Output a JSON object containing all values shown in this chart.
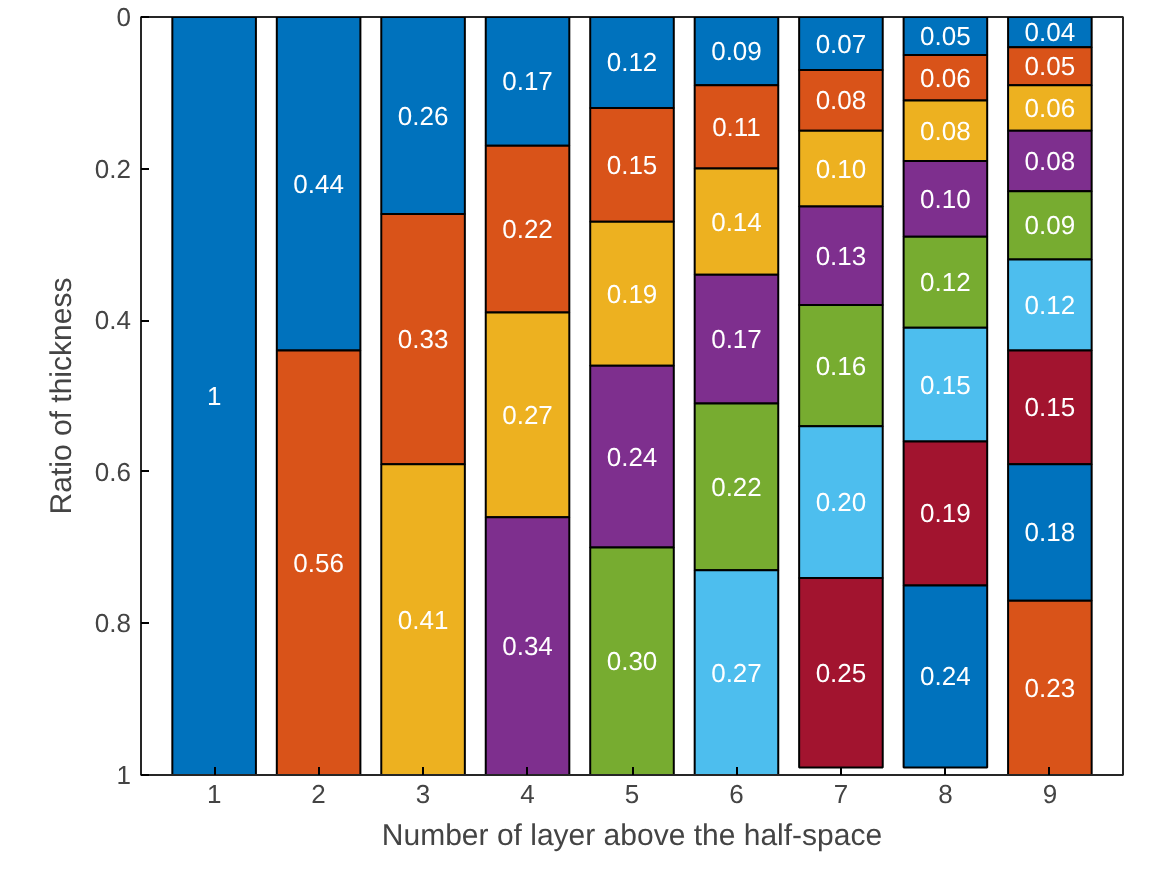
{
  "chart_data": {
    "type": "bar",
    "stacked": true,
    "xlabel": "Number of layer above the half-space",
    "ylabel": "Ratio of thickness",
    "categories": [
      "1",
      "2",
      "3",
      "4",
      "5",
      "6",
      "7",
      "8",
      "9"
    ],
    "ylim": [
      1,
      0
    ],
    "yticks": [
      0,
      0.2,
      0.4,
      0.6,
      0.8,
      1
    ],
    "grid": false,
    "series": [
      {
        "color": "#0072bd",
        "values": [
          1,
          0.44,
          0.26,
          0.17,
          0.12,
          0.09,
          0.07,
          0.05,
          0.04
        ],
        "value_labels": [
          "1",
          "0.44",
          "0.26",
          "0.17",
          "0.12",
          "0.09",
          "0.07",
          "0.05",
          "0.04"
        ]
      },
      {
        "color": "#d95319",
        "values": [
          null,
          0.56,
          0.33,
          0.22,
          0.15,
          0.11,
          0.08,
          0.06,
          0.05
        ],
        "value_labels": [
          null,
          "0.56",
          "0.33",
          "0.22",
          "0.15",
          "0.11",
          "0.08",
          "0.06",
          "0.05"
        ]
      },
      {
        "color": "#edb120",
        "values": [
          null,
          null,
          0.41,
          0.27,
          0.19,
          0.14,
          0.1,
          0.08,
          0.06
        ],
        "value_labels": [
          null,
          null,
          "0.41",
          "0.27",
          "0.19",
          "0.14",
          "0.10",
          "0.08",
          "0.06"
        ]
      },
      {
        "color": "#7e2f8e",
        "values": [
          null,
          null,
          null,
          0.34,
          0.24,
          0.17,
          0.13,
          0.1,
          0.08
        ],
        "value_labels": [
          null,
          null,
          null,
          "0.34",
          "0.24",
          "0.17",
          "0.13",
          "0.10",
          "0.08"
        ]
      },
      {
        "color": "#77ac30",
        "values": [
          null,
          null,
          null,
          null,
          0.3,
          0.22,
          0.16,
          0.12,
          0.09
        ],
        "value_labels": [
          null,
          null,
          null,
          null,
          "0.30",
          "0.22",
          "0.16",
          "0.12",
          "0.09"
        ]
      },
      {
        "color": "#4dbeee",
        "values": [
          null,
          null,
          null,
          null,
          null,
          0.27,
          0.2,
          0.15,
          0.12
        ],
        "value_labels": [
          null,
          null,
          null,
          null,
          null,
          "0.27",
          "0.20",
          "0.15",
          "0.12"
        ]
      },
      {
        "color": "#a2142f",
        "values": [
          null,
          null,
          null,
          null,
          null,
          null,
          0.25,
          0.19,
          0.15
        ],
        "value_labels": [
          null,
          null,
          null,
          null,
          null,
          null,
          "0.25",
          "0.19",
          "0.15"
        ]
      },
      {
        "color": "#0072bd",
        "values": [
          null,
          null,
          null,
          null,
          null,
          null,
          null,
          0.24,
          0.18
        ],
        "value_labels": [
          null,
          null,
          null,
          null,
          null,
          null,
          null,
          "0.24",
          "0.18"
        ]
      },
      {
        "color": "#d95319",
        "values": [
          null,
          null,
          null,
          null,
          null,
          null,
          null,
          null,
          0.23
        ],
        "value_labels": [
          null,
          null,
          null,
          null,
          null,
          null,
          null,
          null,
          "0.23"
        ]
      }
    ]
  }
}
